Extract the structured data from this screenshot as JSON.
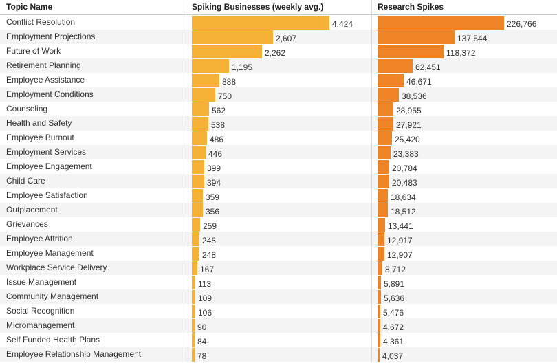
{
  "headers": {
    "topic": "Topic Name",
    "business": "Spiking Businesses (weekly avg.)",
    "research": "Research Spikes"
  },
  "colors": {
    "business_bar": "#f5b135",
    "research_bar": "#ef8426",
    "row_alt": "#f4f4f4"
  },
  "chart_data": {
    "type": "bar",
    "orientation": "horizontal",
    "categories": [
      "Conflict Resolution",
      "Employment Projections",
      "Future of Work",
      "Retirement Planning",
      "Employee Assistance",
      "Employment Conditions",
      "Counseling",
      "Health and Safety",
      "Employee Burnout",
      "Employment Services",
      "Employee Engagement",
      "Child Care",
      "Employee Satisfaction",
      "Outplacement",
      "Grievances",
      "Employee Attrition",
      "Employee Management",
      "Workplace Service Delivery",
      "Issue Management",
      "Community Management",
      "Social Recognition",
      "Micromanagement",
      "Self Funded Health Plans",
      "Employee Relationship Management"
    ],
    "series": [
      {
        "name": "Spiking Businesses (weekly avg.)",
        "values": [
          4424,
          2607,
          2262,
          1195,
          888,
          750,
          562,
          538,
          486,
          446,
          399,
          394,
          359,
          356,
          259,
          248,
          248,
          167,
          113,
          109,
          106,
          90,
          84,
          78
        ],
        "labels": [
          "4,424",
          "2,607",
          "2,262",
          "1,195",
          "888",
          "750",
          "562",
          "538",
          "486",
          "446",
          "399",
          "394",
          "359",
          "356",
          "259",
          "248",
          "248",
          "167",
          "113",
          "109",
          "106",
          "90",
          "84",
          "78"
        ]
      },
      {
        "name": "Research Spikes",
        "values": [
          226766,
          137544,
          118372,
          62451,
          46671,
          38536,
          28955,
          27921,
          25420,
          23383,
          20784,
          20483,
          18634,
          18512,
          13441,
          12917,
          12907,
          8712,
          5891,
          5636,
          5476,
          4672,
          4361,
          4037
        ],
        "labels": [
          "226,766",
          "137,544",
          "118,372",
          "62,451",
          "46,671",
          "38,536",
          "28,955",
          "27,921",
          "25,420",
          "23,383",
          "20,784",
          "20,483",
          "18,634",
          "18,512",
          "13,441",
          "12,917",
          "12,907",
          "8,712",
          "5,891",
          "5,636",
          "5,476",
          "4,672",
          "4,361",
          "4,037"
        ]
      }
    ],
    "title": "",
    "xlabel": "",
    "ylabel": "Topic Name",
    "grid": false,
    "legend": "none"
  }
}
